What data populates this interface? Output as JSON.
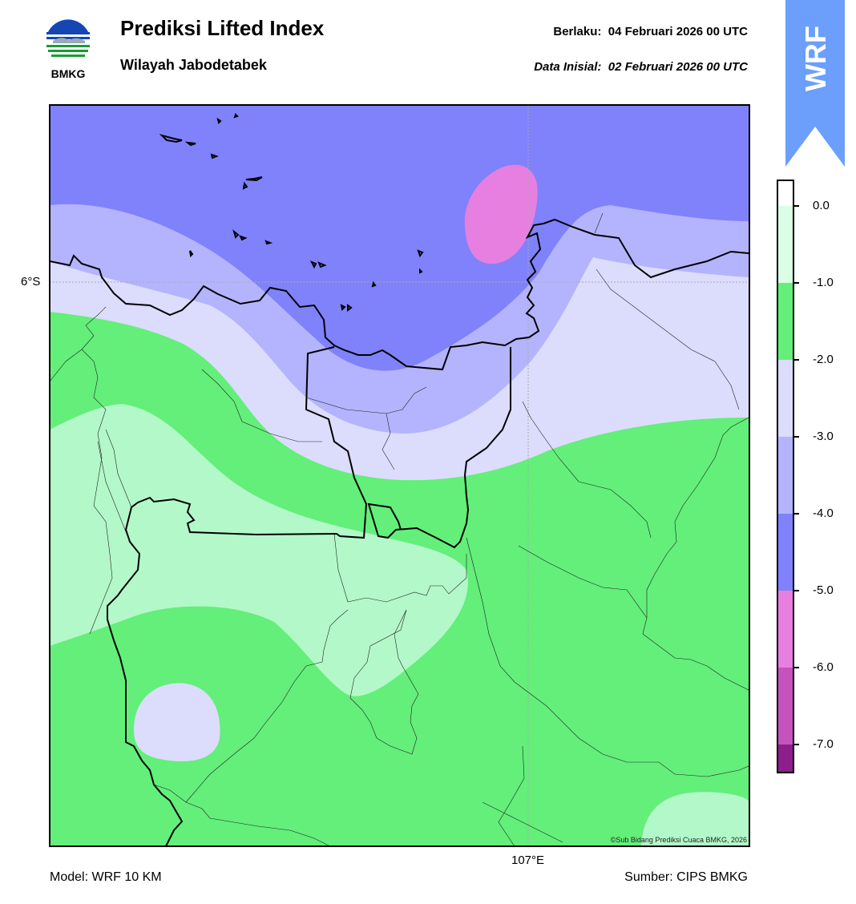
{
  "header": {
    "logo_text": "BMKG",
    "title": "Prediksi Lifted Index",
    "subtitle": "Wilayah Jabodetabek",
    "valid_label": "Berlaku:",
    "valid_value": "04 Februari 2026 00 UTC",
    "init_label": "Data Inisial:",
    "init_value": "02 Februari 2026 00 UTC",
    "badge": "WRF"
  },
  "map": {
    "lat_label": "6°S",
    "lon_label": "107°E",
    "credit": "©Sub Bidang Prediksi Cuaca BMKG, 2026",
    "graticule_color": "#aaaaaa"
  },
  "colorbar": {
    "labels": [
      "0.0",
      "-1.0",
      "-2.0",
      "-3.0",
      "-4.0",
      "-5.0",
      "-6.0",
      "-7.0"
    ],
    "bands": [
      {
        "range": "0 to -1",
        "color": "#dcfde6"
      },
      {
        "range": "-1 to -2",
        "color": "#63ef7a"
      },
      {
        "range": "-2 to -3",
        "color": "#dcdcfd"
      },
      {
        "range": "-3 to -4",
        "color": "#b3b4fd"
      },
      {
        "range": "-4 to -5",
        "color": "#7f82fb"
      },
      {
        "range": "-5 to -6",
        "color": "#e77fe0"
      },
      {
        "range": "-6 to -7",
        "color": "#c553bd"
      },
      {
        "range": "-7 and below",
        "color": "#8c1f8b"
      }
    ]
  },
  "colors": {
    "field_li_0_to_m1": "#b3f8c9",
    "field_li_m1_to_m2": "#63ef7a",
    "field_li_m2_to_m3": "#dcdcfd",
    "field_li_m3_to_m4": "#b3b4fd",
    "field_li_m4_to_m5": "#7f82fb",
    "field_li_m5_to_m6": "#e77fe0",
    "wrf_badge": "#6c9ffc"
  },
  "footer": {
    "model": "Model: WRF 10 KM",
    "source": "Sumber: CIPS BMKG"
  }
}
